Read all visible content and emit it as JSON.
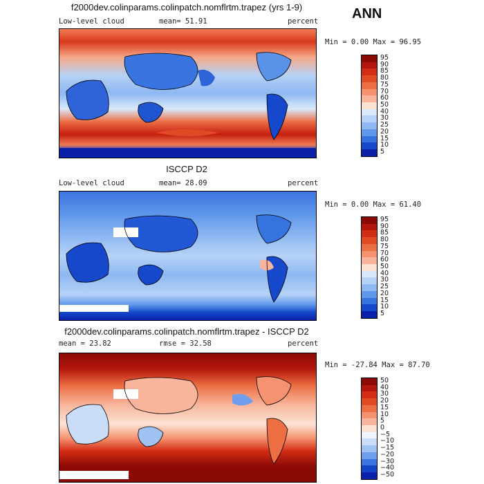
{
  "season": "ANN",
  "panels": [
    {
      "title": "f2000dev.colinparams.colinpatch.nomflrtm.trapez (yrs 1-9)",
      "left_label": "Low-level cloud",
      "mean_label": "mean=  51.91",
      "units": "percent",
      "minmax": "Min =   0.00 Max =  96.95",
      "levels": [
        "95",
        "90",
        "85",
        "80",
        "75",
        "70",
        "60",
        "50",
        "40",
        "30",
        "25",
        "20",
        "15",
        "10",
        "5"
      ],
      "colors": [
        "#8b0a06",
        "#b3160c",
        "#d22d14",
        "#e04a24",
        "#ec6e43",
        "#f59371",
        "#f8b59c",
        "#fbe2d3",
        "#d9e9fb",
        "#b6d2f6",
        "#8eb8f2",
        "#5f97ea",
        "#3573df",
        "#1648cc",
        "#0a20a8"
      ]
    },
    {
      "title": "ISCCP D2",
      "left_label": "Low-level cloud",
      "mean_label": "mean=  28.09",
      "units": "percent",
      "minmax": "Min =   0.00 Max =  61.40",
      "levels": [
        "95",
        "90",
        "85",
        "80",
        "75",
        "70",
        "60",
        "50",
        "40",
        "30",
        "25",
        "20",
        "15",
        "10",
        "5"
      ],
      "colors": [
        "#8b0a06",
        "#b3160c",
        "#d22d14",
        "#e04a24",
        "#ec6e43",
        "#f59371",
        "#f8b59c",
        "#fbe2d3",
        "#d9e9fb",
        "#b6d2f6",
        "#8eb8f2",
        "#5f97ea",
        "#3573df",
        "#1648cc",
        "#0a20a8"
      ]
    },
    {
      "title": "f2000dev.colinparams.colinpatch.nomflrtm.trapez - ISCCP D2",
      "left_label": "mean =  23.82",
      "mean_label": "rmse =  32.58",
      "units": "percent",
      "minmax": "Min = -27.84 Max =  87.70",
      "levels": [
        "50",
        "40",
        "30",
        "20",
        "15",
        "10",
        "5",
        "0",
        "−5",
        "−10",
        "−15",
        "−20",
        "−30",
        "−40",
        "−50"
      ],
      "colors": [
        "#8b0a06",
        "#b3160c",
        "#d22d14",
        "#e04a24",
        "#ec6e43",
        "#f59371",
        "#f8b59c",
        "#fbe2d3",
        "#eef4fd",
        "#c9ddf8",
        "#9fc2f3",
        "#6f9fec",
        "#3c74e0",
        "#1544c6",
        "#0a20a8"
      ]
    }
  ],
  "chart_data": [
    {
      "type": "heatmap",
      "title": "f2000dev.colinparams.colinpatch.nomflrtm.trapez (yrs 1-9)",
      "variable": "Low-level cloud",
      "units": "percent",
      "mean": 51.91,
      "min": 0.0,
      "max": 96.95,
      "contour_levels": [
        5,
        10,
        15,
        20,
        25,
        30,
        40,
        50,
        60,
        70,
        75,
        80,
        85,
        90,
        95
      ]
    },
    {
      "type": "heatmap",
      "title": "ISCCP D2",
      "variable": "Low-level cloud",
      "units": "percent",
      "mean": 28.09,
      "min": 0.0,
      "max": 61.4,
      "contour_levels": [
        5,
        10,
        15,
        20,
        25,
        30,
        40,
        50,
        60,
        70,
        75,
        80,
        85,
        90,
        95
      ]
    },
    {
      "type": "heatmap",
      "title": "f2000dev.colinparams.colinpatch.nomflrtm.trapez - ISCCP D2",
      "units": "percent",
      "mean": 23.82,
      "rmse": 32.58,
      "min": -27.84,
      "max": 87.7,
      "contour_levels": [
        -50,
        -40,
        -30,
        -20,
        -15,
        -10,
        -5,
        0,
        5,
        10,
        15,
        20,
        30,
        40,
        50
      ]
    }
  ]
}
